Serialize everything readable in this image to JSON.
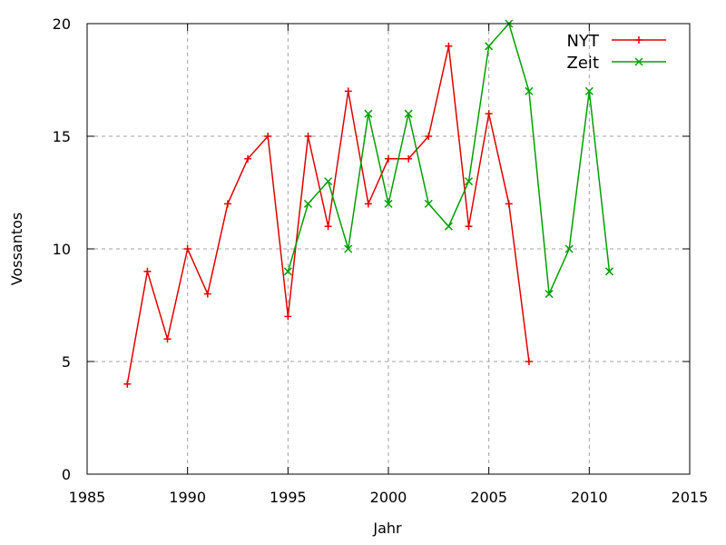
{
  "chart_data": {
    "type": "line",
    "title": "",
    "xlabel": "Jahr",
    "ylabel": "Vossantos",
    "xlim": [
      1985,
      2015
    ],
    "ylim": [
      0,
      20
    ],
    "xticks": [
      1985,
      1990,
      1995,
      2000,
      2005,
      2010,
      2015
    ],
    "yticks": [
      0,
      5,
      10,
      15,
      20
    ],
    "grid": true,
    "legend": "top-right",
    "series": [
      {
        "name": "NYT",
        "color": "#e00000",
        "marker": "plus",
        "x": [
          1987,
          1988,
          1989,
          1990,
          1991,
          1992,
          1993,
          1994,
          1995,
          1996,
          1997,
          1998,
          1999,
          2000,
          2001,
          2002,
          2003,
          2004,
          2005,
          2006,
          2007
        ],
        "y": [
          4,
          9,
          6,
          10,
          8,
          12,
          14,
          15,
          7,
          15,
          11,
          17,
          12,
          14,
          14,
          15,
          19,
          11,
          16,
          12,
          5
        ]
      },
      {
        "name": "Zeit",
        "color": "#00a000",
        "marker": "cross",
        "x": [
          1995,
          1996,
          1997,
          1998,
          1999,
          2000,
          2001,
          2002,
          2003,
          2004,
          2005,
          2006,
          2007,
          2008,
          2009,
          2010,
          2011
        ],
        "y": [
          9,
          12,
          13,
          10,
          16,
          12,
          16,
          12,
          11,
          13,
          19,
          20,
          17,
          8,
          10,
          17,
          9
        ]
      }
    ]
  }
}
